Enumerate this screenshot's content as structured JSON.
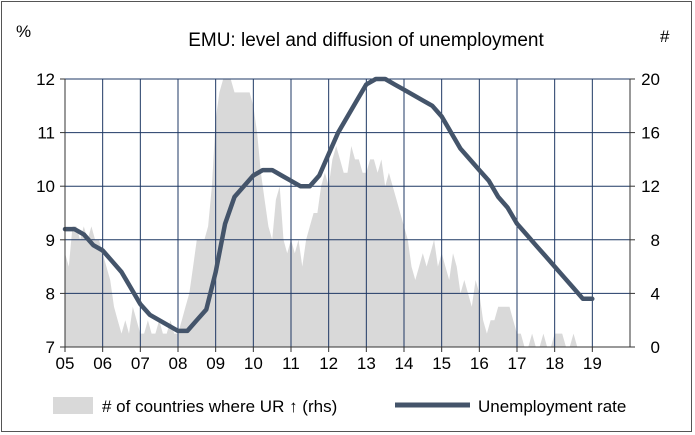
{
  "chart_data": {
    "type": "line",
    "title": "EMU: level and diffusion of unemployment",
    "left_axis_unit": "%",
    "right_axis_unit": "#",
    "xlim": [
      2005,
      2020
    ],
    "ylim": [
      7,
      12
    ],
    "y2lim": [
      0,
      20
    ],
    "x_ticks": [
      2005,
      2006,
      2007,
      2008,
      2009,
      2010,
      2011,
      2012,
      2013,
      2014,
      2015,
      2016,
      2017,
      2018,
      2019
    ],
    "x_tick_labels": [
      "05",
      "06",
      "07",
      "08",
      "09",
      "10",
      "11",
      "12",
      "13",
      "14",
      "15",
      "16",
      "17",
      "18",
      "19"
    ],
    "y_ticks": [
      7,
      8,
      9,
      10,
      11,
      12
    ],
    "y_tick_labels": [
      "7",
      "8",
      "9",
      "10",
      "11",
      "12"
    ],
    "y2_ticks": [
      0,
      4,
      8,
      12,
      16,
      20
    ],
    "y2_tick_labels": [
      "0",
      "4",
      "8",
      "12",
      "16",
      "20"
    ],
    "grid": true,
    "legend_position": "bottom",
    "series": [
      {
        "name": "# of countries where UR ↑ (rhs)",
        "type": "area",
        "axis": "right",
        "color": "#d9d9d9",
        "x": [
          2005.0,
          2005.1,
          2005.2,
          2005.3,
          2005.4,
          2005.5,
          2005.6,
          2005.7,
          2005.8,
          2005.9,
          2006.0,
          2006.1,
          2006.2,
          2006.3,
          2006.4,
          2006.5,
          2006.6,
          2006.7,
          2006.8,
          2006.9,
          2007.0,
          2007.1,
          2007.2,
          2007.3,
          2007.4,
          2007.5,
          2007.6,
          2007.7,
          2007.8,
          2007.9,
          2008.0,
          2008.1,
          2008.2,
          2008.3,
          2008.4,
          2008.5,
          2008.6,
          2008.7,
          2008.8,
          2008.9,
          2009.0,
          2009.1,
          2009.2,
          2009.3,
          2009.4,
          2009.5,
          2009.6,
          2009.7,
          2009.8,
          2009.9,
          2010.0,
          2010.1,
          2010.2,
          2010.3,
          2010.4,
          2010.5,
          2010.6,
          2010.7,
          2010.8,
          2010.9,
          2011.0,
          2011.1,
          2011.2,
          2011.3,
          2011.4,
          2011.5,
          2011.6,
          2011.7,
          2011.8,
          2011.9,
          2012.0,
          2012.1,
          2012.2,
          2012.3,
          2012.4,
          2012.5,
          2012.6,
          2012.7,
          2012.8,
          2012.9,
          2013.0,
          2013.1,
          2013.2,
          2013.3,
          2013.4,
          2013.5,
          2013.6,
          2013.7,
          2013.8,
          2013.9,
          2014.0,
          2014.1,
          2014.2,
          2014.3,
          2014.4,
          2014.5,
          2014.6,
          2014.7,
          2014.8,
          2014.9,
          2015.0,
          2015.1,
          2015.2,
          2015.3,
          2015.4,
          2015.5,
          2015.6,
          2015.7,
          2015.8,
          2015.9,
          2016.0,
          2016.1,
          2016.2,
          2016.3,
          2016.4,
          2016.5,
          2016.6,
          2016.7,
          2016.8,
          2016.9,
          2017.0,
          2017.1,
          2017.2,
          2017.3,
          2017.4,
          2017.5,
          2017.6,
          2017.7,
          2017.8,
          2017.9,
          2018.0,
          2018.1,
          2018.2,
          2018.3,
          2018.4,
          2018.5,
          2018.6,
          2018.7,
          2018.8,
          2018.9,
          2019.0
        ],
        "values": [
          7,
          6,
          9,
          9,
          8,
          9,
          8,
          9,
          8,
          8,
          7,
          6,
          5,
          3,
          2,
          1,
          2,
          1,
          3,
          2,
          1,
          1,
          2,
          1,
          1,
          2,
          1,
          1,
          2,
          1,
          1,
          2,
          3,
          4,
          6,
          8,
          8,
          8,
          9,
          12,
          17,
          19,
          20,
          20,
          20,
          19,
          19,
          19,
          19,
          19,
          18,
          16,
          13,
          11,
          9,
          8,
          11,
          12,
          8,
          7,
          8,
          7,
          8,
          6,
          8,
          9,
          10,
          10,
          12,
          13,
          12,
          14,
          15,
          14,
          13,
          13,
          15,
          14,
          14,
          13,
          13,
          14,
          14,
          13,
          14,
          12,
          13,
          12,
          11,
          10,
          9,
          8,
          6,
          5,
          6,
          7,
          6,
          7,
          8,
          6,
          7,
          6,
          5,
          7,
          6,
          4,
          5,
          4,
          3,
          5,
          4,
          2,
          1,
          2,
          2,
          3,
          3,
          3,
          3,
          2,
          1,
          1,
          0,
          0,
          1,
          0,
          0,
          1,
          0,
          0,
          1,
          1,
          1,
          0,
          0,
          1,
          0,
          0,
          0,
          0,
          0
        ]
      },
      {
        "name": "Unemployment rate",
        "type": "line",
        "axis": "left",
        "color": "#44546a",
        "x": [
          2005.0,
          2005.25,
          2005.5,
          2005.75,
          2006.0,
          2006.25,
          2006.5,
          2006.75,
          2007.0,
          2007.25,
          2007.5,
          2007.75,
          2008.0,
          2008.25,
          2008.5,
          2008.75,
          2009.0,
          2009.25,
          2009.5,
          2009.75,
          2010.0,
          2010.25,
          2010.5,
          2010.75,
          2011.0,
          2011.25,
          2011.5,
          2011.75,
          2012.0,
          2012.25,
          2012.5,
          2012.75,
          2013.0,
          2013.25,
          2013.5,
          2013.75,
          2014.0,
          2014.25,
          2014.5,
          2014.75,
          2015.0,
          2015.25,
          2015.5,
          2015.75,
          2016.0,
          2016.25,
          2016.5,
          2016.75,
          2017.0,
          2017.25,
          2017.5,
          2017.75,
          2018.0,
          2018.25,
          2018.5,
          2018.75,
          2019.0
        ],
        "values": [
          9.2,
          9.2,
          9.1,
          8.9,
          8.8,
          8.6,
          8.4,
          8.1,
          7.8,
          7.6,
          7.5,
          7.4,
          7.3,
          7.3,
          7.5,
          7.7,
          8.4,
          9.3,
          9.8,
          10.0,
          10.2,
          10.3,
          10.3,
          10.2,
          10.1,
          10.0,
          10.0,
          10.2,
          10.6,
          11.0,
          11.3,
          11.6,
          11.9,
          12.0,
          12.0,
          11.9,
          11.8,
          11.7,
          11.6,
          11.5,
          11.3,
          11.0,
          10.7,
          10.5,
          10.3,
          10.1,
          9.8,
          9.6,
          9.3,
          9.1,
          8.9,
          8.7,
          8.5,
          8.3,
          8.1,
          7.9,
          7.9
        ]
      }
    ]
  }
}
